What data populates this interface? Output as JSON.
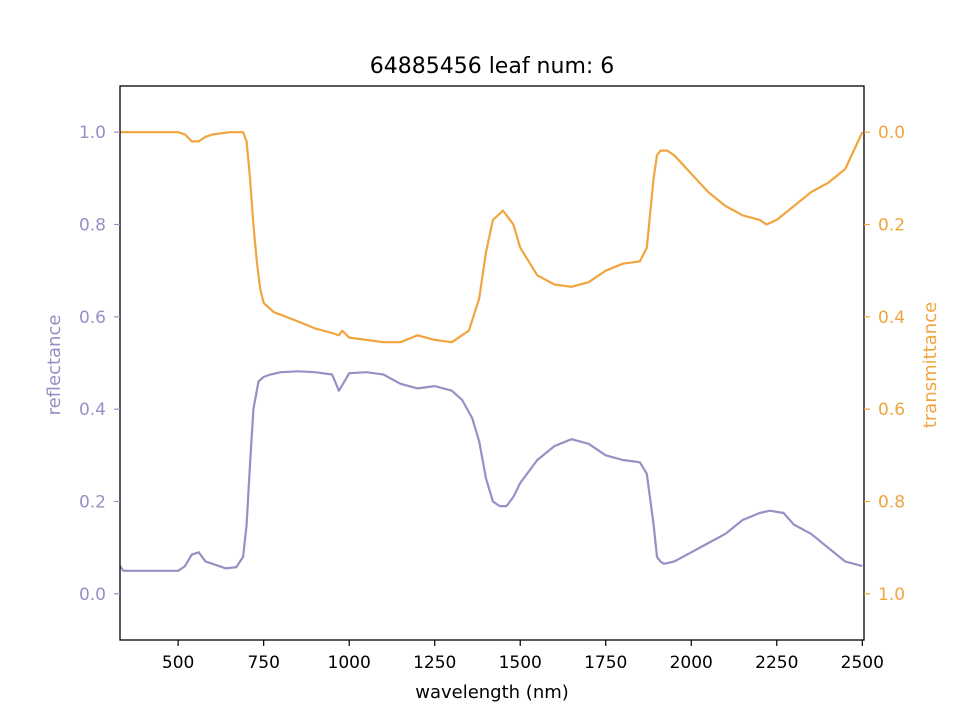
{
  "chart_data": {
    "type": "line",
    "title": "64885456 leaf num: 6",
    "xlabel": "wavelength (nm)",
    "xlim": [
      330,
      2505
    ],
    "x_ticks": [
      500,
      750,
      1000,
      1250,
      1500,
      1750,
      2000,
      2250,
      2500
    ],
    "left_axis": {
      "label": "reflectance",
      "ylim": [
        -0.1,
        1.1
      ],
      "ticks": [
        0.0,
        0.2,
        0.4,
        0.6,
        0.8,
        1.0
      ],
      "color": "#9690c4"
    },
    "right_axis": {
      "label": "transmittance",
      "ylim": [
        1.1,
        -0.1
      ],
      "inverted": true,
      "ticks": [
        0.0,
        0.2,
        0.4,
        0.6,
        0.8,
        1.0
      ],
      "color": "#f0a53f"
    },
    "series": [
      {
        "axis": "left",
        "color": "#9690c4",
        "x": [
          330,
          340,
          350,
          400,
          450,
          500,
          520,
          540,
          560,
          580,
          600,
          640,
          670,
          690,
          700,
          710,
          720,
          735,
          750,
          770,
          800,
          850,
          900,
          950,
          970,
          990,
          1000,
          1050,
          1100,
          1150,
          1200,
          1250,
          1300,
          1330,
          1360,
          1380,
          1400,
          1420,
          1440,
          1460,
          1480,
          1500,
          1550,
          1600,
          1650,
          1700,
          1750,
          1800,
          1850,
          1870,
          1890,
          1900,
          1910,
          1920,
          1950,
          2000,
          2050,
          2100,
          2150,
          2200,
          2230,
          2270,
          2300,
          2350,
          2400,
          2450,
          2500
        ],
        "values": [
          0.06,
          0.05,
          0.05,
          0.05,
          0.05,
          0.05,
          0.06,
          0.085,
          0.09,
          0.07,
          0.065,
          0.055,
          0.058,
          0.08,
          0.15,
          0.28,
          0.4,
          0.46,
          0.47,
          0.475,
          0.48,
          0.482,
          0.48,
          0.475,
          0.44,
          0.465,
          0.478,
          0.48,
          0.475,
          0.455,
          0.445,
          0.45,
          0.44,
          0.42,
          0.38,
          0.33,
          0.25,
          0.2,
          0.19,
          0.19,
          0.21,
          0.24,
          0.29,
          0.32,
          0.335,
          0.325,
          0.3,
          0.29,
          0.285,
          0.26,
          0.15,
          0.08,
          0.07,
          0.065,
          0.07,
          0.09,
          0.11,
          0.13,
          0.16,
          0.175,
          0.18,
          0.175,
          0.15,
          0.13,
          0.1,
          0.07,
          0.06
        ]
      },
      {
        "axis": "right",
        "color": "#f0a53f",
        "x": [
          330,
          350,
          400,
          450,
          500,
          520,
          540,
          560,
          580,
          600,
          650,
          690,
          700,
          710,
          720,
          730,
          740,
          750,
          780,
          850,
          900,
          950,
          970,
          980,
          1000,
          1050,
          1100,
          1150,
          1200,
          1250,
          1300,
          1350,
          1380,
          1400,
          1420,
          1450,
          1480,
          1500,
          1550,
          1600,
          1650,
          1700,
          1750,
          1800,
          1850,
          1870,
          1890,
          1900,
          1910,
          1930,
          1950,
          2000,
          2050,
          2100,
          2150,
          2200,
          2220,
          2250,
          2300,
          2350,
          2400,
          2450,
          2500
        ],
        "values": [
          0.0,
          0.0,
          0.0,
          0.0,
          0.0,
          0.005,
          0.02,
          0.02,
          0.01,
          0.005,
          0.0,
          0.0,
          0.02,
          0.1,
          0.2,
          0.28,
          0.34,
          0.37,
          0.39,
          0.41,
          0.425,
          0.435,
          0.44,
          0.43,
          0.445,
          0.45,
          0.455,
          0.455,
          0.44,
          0.45,
          0.455,
          0.43,
          0.36,
          0.26,
          0.19,
          0.17,
          0.2,
          0.25,
          0.31,
          0.33,
          0.335,
          0.325,
          0.3,
          0.285,
          0.28,
          0.25,
          0.1,
          0.05,
          0.04,
          0.04,
          0.05,
          0.09,
          0.13,
          0.16,
          0.18,
          0.19,
          0.2,
          0.19,
          0.16,
          0.13,
          0.11,
          0.08,
          0.0
        ]
      }
    ]
  }
}
